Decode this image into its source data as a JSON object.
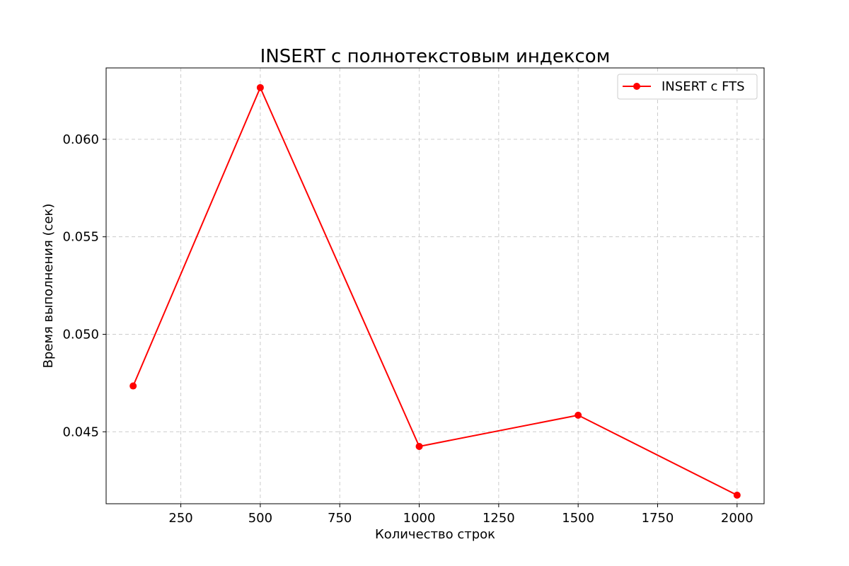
{
  "chart_data": {
    "type": "line",
    "title": "INSERT с полнотекстовым индексом",
    "xlabel": "Количество строк",
    "ylabel": "Время выполнения (сек)",
    "x": [
      100,
      500,
      1000,
      1500,
      2000
    ],
    "series": [
      {
        "name": "INSERT с FTS",
        "color": "#ff0000",
        "marker": "circle",
        "values": [
          0.04735,
          0.06265,
          0.04425,
          0.04585,
          0.04175
        ]
      }
    ],
    "xlim": [
      15,
      2085
    ],
    "ylim": [
      0.04131,
      0.06366
    ],
    "xticks": [
      250,
      500,
      750,
      1000,
      1250,
      1500,
      1750,
      2000
    ],
    "yticks": [
      0.045,
      0.05,
      0.055,
      0.06
    ],
    "xtick_labels": [
      "250",
      "500",
      "750",
      "1000",
      "1250",
      "1500",
      "1750",
      "2000"
    ],
    "ytick_labels": [
      "0.045",
      "0.050",
      "0.055",
      "0.060"
    ],
    "grid": true,
    "legend_position": "top-right"
  }
}
